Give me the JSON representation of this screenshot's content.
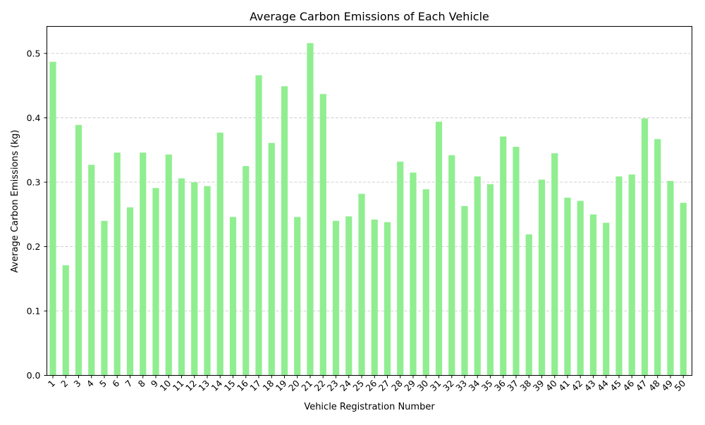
{
  "chart_data": {
    "type": "bar",
    "title": "Average Carbon Emissions of Each Vehicle",
    "xlabel": "Vehicle Registration Number",
    "ylabel": "Average Carbon Emissions (kg)",
    "ylim": [
      0,
      0.542
    ],
    "yticks": [
      0.0,
      0.1,
      0.2,
      0.3,
      0.4,
      0.5
    ],
    "ytick_labels": [
      "0.0",
      "0.1",
      "0.2",
      "0.3",
      "0.4",
      "0.5"
    ],
    "grid": "y-axis dashed",
    "bar_color": "#90ee90",
    "categories": [
      "1",
      "2",
      "3",
      "4",
      "5",
      "6",
      "7",
      "8",
      "9",
      "10",
      "11",
      "12",
      "13",
      "14",
      "15",
      "16",
      "17",
      "18",
      "19",
      "20",
      "21",
      "22",
      "23",
      "24",
      "25",
      "26",
      "27",
      "28",
      "29",
      "30",
      "31",
      "32",
      "33",
      "34",
      "35",
      "36",
      "37",
      "38",
      "39",
      "40",
      "41",
      "42",
      "43",
      "44",
      "45",
      "46",
      "47",
      "48",
      "49",
      "50"
    ],
    "values": [
      0.487,
      0.171,
      0.389,
      0.327,
      0.24,
      0.346,
      0.261,
      0.346,
      0.291,
      0.343,
      0.306,
      0.3,
      0.294,
      0.377,
      0.246,
      0.325,
      0.466,
      0.361,
      0.449,
      0.246,
      0.516,
      0.437,
      0.24,
      0.247,
      0.282,
      0.242,
      0.238,
      0.332,
      0.315,
      0.289,
      0.394,
      0.342,
      0.263,
      0.309,
      0.297,
      0.371,
      0.355,
      0.219,
      0.304,
      0.345,
      0.276,
      0.271,
      0.25,
      0.237,
      0.309,
      0.312,
      0.399,
      0.367,
      0.302,
      0.268
    ]
  }
}
